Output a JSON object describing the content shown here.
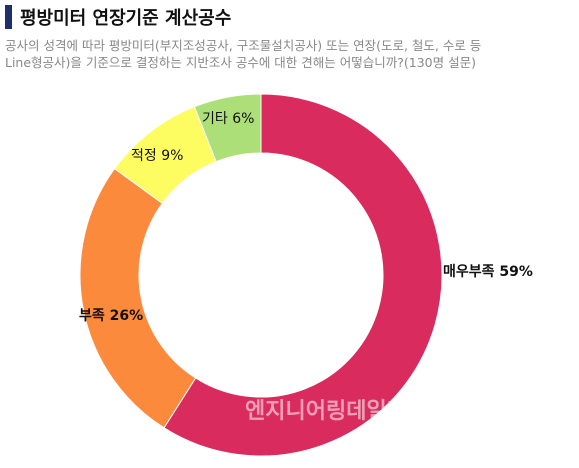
{
  "title": "평방미터 연장기준 계산공수",
  "subtitle_line1": "공사의 성격에 따라 평방미터(부지조성공사, 구조물설치공사) 또는 연장(도로, 철도, 수로 등",
  "subtitle_line2": "Line형공사)을 기준으로 결정하는 지반조사 공수에 대한 견해는 어떻습니까?(130명 설문)",
  "watermark": "엔지니어링데일리",
  "chart_data": {
    "type": "pie",
    "style": "donut",
    "start": "top, clockwise",
    "slices": [
      {
        "label": "매우부족",
        "value": 59,
        "display": "59%",
        "color": "#d92b5e",
        "bold": true
      },
      {
        "label": "부족",
        "value": 26,
        "display": "26%",
        "color": "#fc8a3c",
        "bold": true
      },
      {
        "label": "적정",
        "value": 9,
        "display": "9%",
        "color": "#fdfd62",
        "bold": false
      },
      {
        "label": "기타",
        "value": 6,
        "display": "6%",
        "color": "#addf78",
        "bold": false
      }
    ]
  }
}
